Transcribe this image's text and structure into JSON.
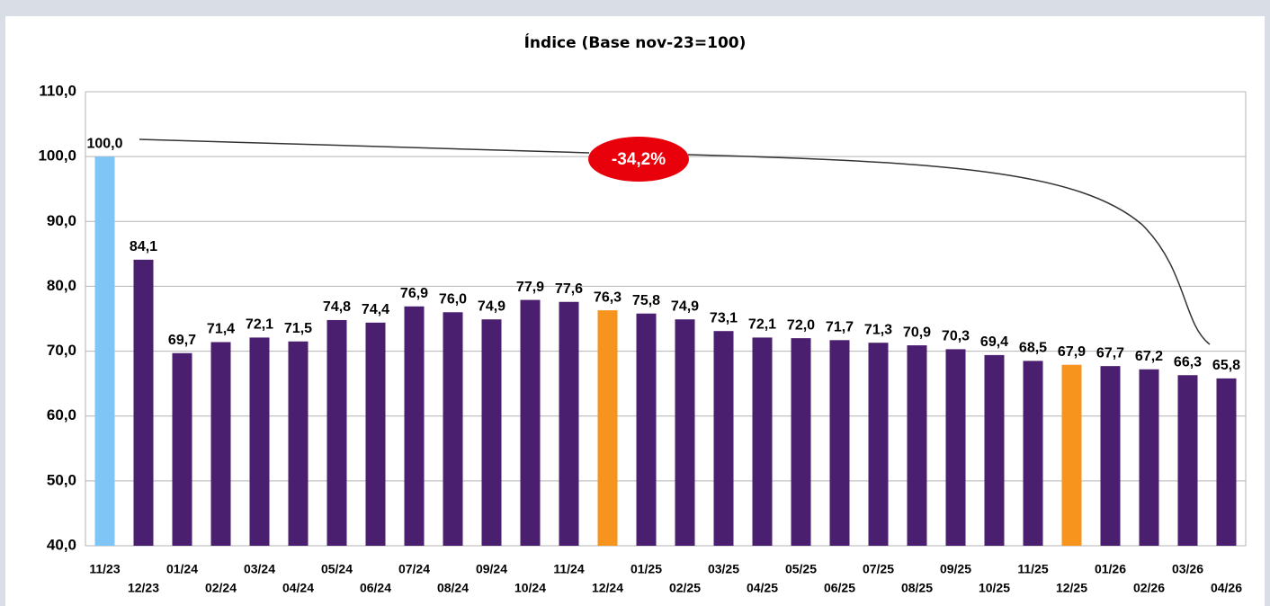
{
  "chart_data": {
    "type": "bar",
    "title": "Índice (Base nov-23=100)",
    "categories": [
      "11/23",
      "12/23",
      "01/24",
      "02/24",
      "03/24",
      "04/24",
      "05/24",
      "06/24",
      "07/24",
      "08/24",
      "09/24",
      "10/24",
      "11/24",
      "12/24",
      "01/25",
      "02/25",
      "03/25",
      "04/25",
      "05/25",
      "06/25",
      "07/25",
      "08/25",
      "09/25",
      "10/25",
      "11/25",
      "12/25",
      "01/26",
      "02/26",
      "03/26",
      "04/26"
    ],
    "values": [
      100.0,
      84.1,
      69.7,
      71.4,
      72.1,
      71.5,
      74.8,
      74.4,
      76.9,
      76.0,
      74.9,
      77.9,
      77.6,
      76.3,
      75.8,
      74.9,
      73.1,
      72.1,
      72.0,
      71.7,
      71.3,
      70.9,
      70.3,
      69.4,
      68.5,
      67.9,
      67.7,
      67.2,
      66.3,
      65.8
    ],
    "value_labels": [
      "100,0",
      "84,1",
      "69,7",
      "71,4",
      "72,1",
      "71,5",
      "74,8",
      "74,4",
      "76,9",
      "76,0",
      "74,9",
      "77,9",
      "77,6",
      "76,3",
      "75,8",
      "74,9",
      "73,1",
      "72,1",
      "72,0",
      "71,7",
      "71,3",
      "70,9",
      "70,3",
      "69,4",
      "68,5",
      "67,9",
      "67,7",
      "67,2",
      "66,3",
      "65,8"
    ],
    "colors": [
      "#7fc6f6",
      "#4b1f6f",
      "#4b1f6f",
      "#4b1f6f",
      "#4b1f6f",
      "#4b1f6f",
      "#4b1f6f",
      "#4b1f6f",
      "#4b1f6f",
      "#4b1f6f",
      "#4b1f6f",
      "#4b1f6f",
      "#4b1f6f",
      "#f7941d",
      "#4b1f6f",
      "#4b1f6f",
      "#4b1f6f",
      "#4b1f6f",
      "#4b1f6f",
      "#4b1f6f",
      "#4b1f6f",
      "#4b1f6f",
      "#4b1f6f",
      "#4b1f6f",
      "#4b1f6f",
      "#f7941d",
      "#4b1f6f",
      "#4b1f6f",
      "#4b1f6f",
      "#4b1f6f"
    ],
    "ylim": [
      40,
      110
    ],
    "yticks": [
      {
        "value": 40,
        "label": "40,0"
      },
      {
        "value": 50,
        "label": "50,0"
      },
      {
        "value": 60,
        "label": "60,0"
      },
      {
        "value": 70,
        "label": "70,0"
      },
      {
        "value": 80,
        "label": "80,0"
      },
      {
        "value": 90,
        "label": "90,0"
      },
      {
        "value": 100,
        "label": "100,0"
      },
      {
        "value": 110,
        "label": "110,0"
      }
    ],
    "grid": true,
    "annotation": "-34,2%"
  }
}
